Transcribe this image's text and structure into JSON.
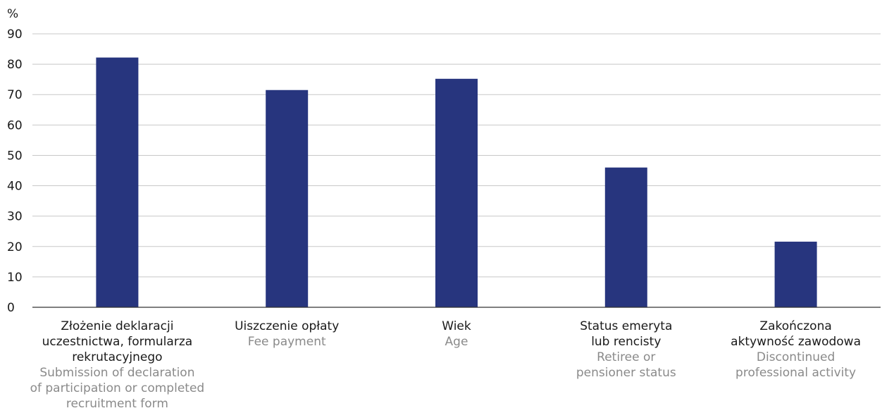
{
  "chart_data": {
    "type": "bar",
    "ylabel": "%",
    "ylim": [
      0,
      90
    ],
    "yticks": [
      0,
      10,
      20,
      30,
      40,
      50,
      60,
      70,
      80,
      90
    ],
    "grid": true,
    "bar_color": "#27357e",
    "categories": [
      {
        "pl": [
          "Złożenie deklaracji",
          "uczestnictwa, formularza",
          "rekrutacyjnego"
        ],
        "en": [
          "Submission of declaration",
          "of participation or completed",
          "recruitment form"
        ]
      },
      {
        "pl": [
          "Uiszczenie opłaty"
        ],
        "en": [
          "Fee payment"
        ]
      },
      {
        "pl": [
          "Wiek"
        ],
        "en": [
          "Age"
        ]
      },
      {
        "pl": [
          "Status emeryta",
          "lub rencisty"
        ],
        "en": [
          "Retiree or",
          "pensioner status"
        ]
      },
      {
        "pl": [
          "Zakończona",
          "aktywność zawodowa"
        ],
        "en": [
          "Discontinued",
          "professional activity"
        ]
      }
    ],
    "values": [
      82.2,
      71.5,
      75.2,
      46.0,
      21.6
    ]
  }
}
